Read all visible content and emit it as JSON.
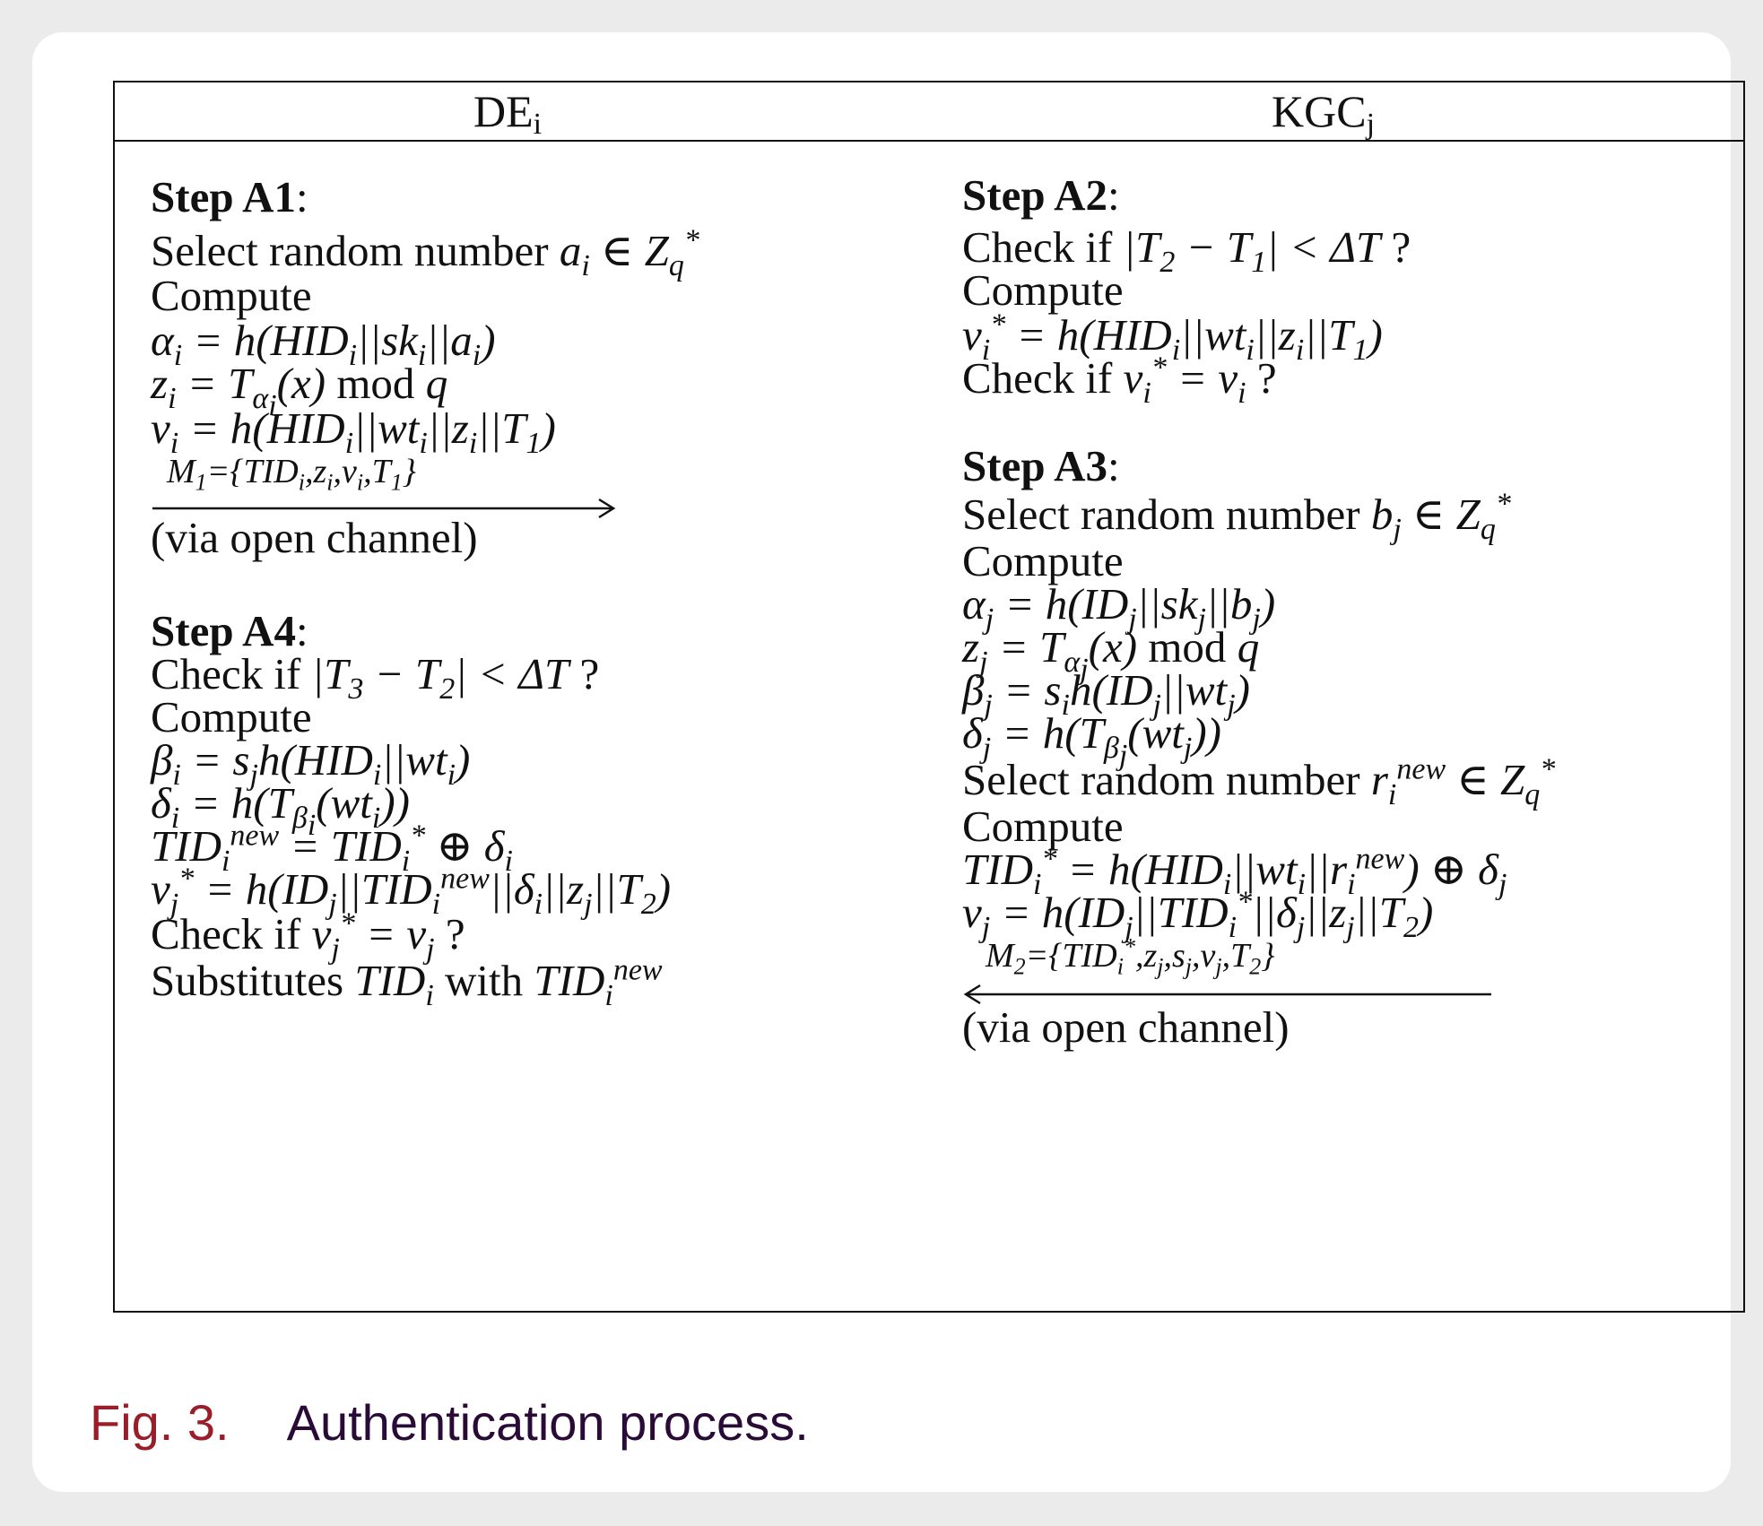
{
  "header": {
    "left_party": {
      "base": "DE",
      "sub": "i"
    },
    "right_party": {
      "base": "KGC",
      "sub": "j"
    }
  },
  "left": {
    "step_a1_title": "Step A1",
    "select_random": "Select random number",
    "compute": "Compute",
    "mod": "mod",
    "via_open_channel": "(via open channel)",
    "step_a4_title": "Step A4",
    "check_if": "Check if",
    "substitutes": "Substitutes",
    "with": "with"
  },
  "right": {
    "step_a2_title": "Step A2",
    "check_if": "Check if",
    "compute": "Compute",
    "step_a3_title": "Step A3",
    "select_random": "Select random number",
    "mod": "mod",
    "via_open_channel": "(via open channel)"
  },
  "caption": {
    "label": "Fig. 3.",
    "text": "Authentication process."
  }
}
